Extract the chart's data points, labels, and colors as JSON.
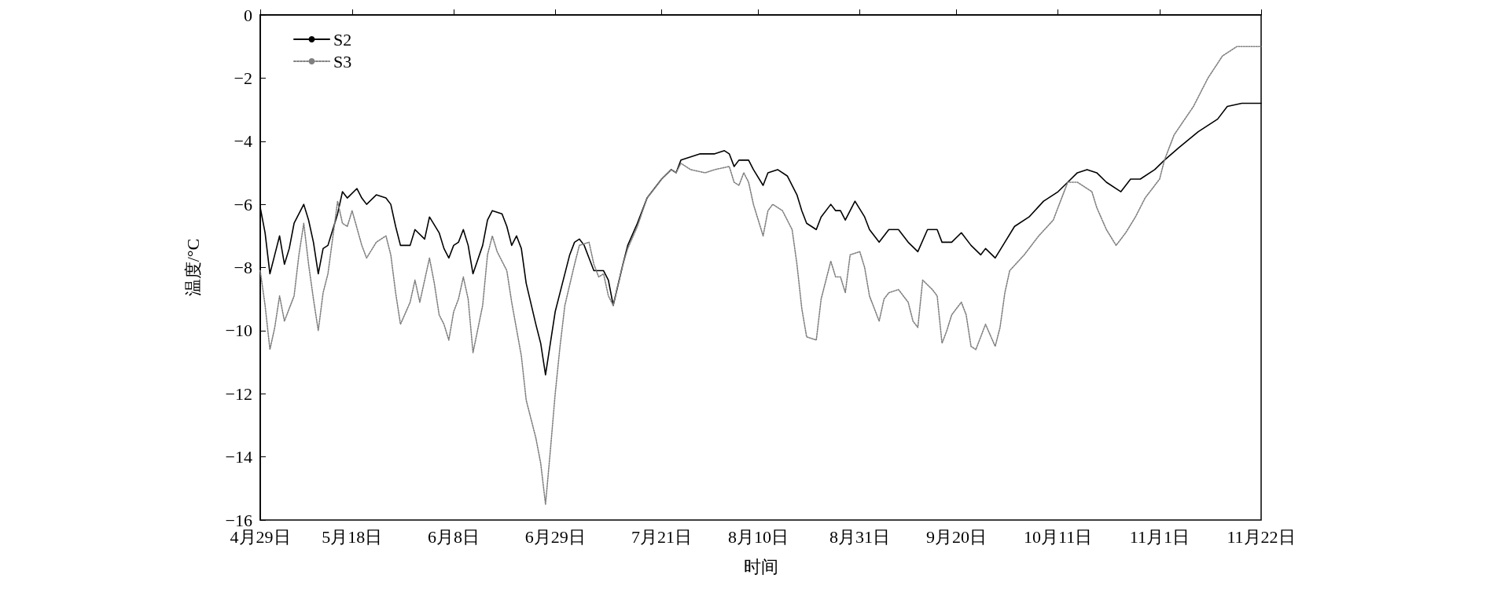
{
  "chart_data": {
    "type": "line",
    "xlabel": "时间",
    "ylabel": "温度/°C",
    "xlim": [
      "--04-29",
      "--11-22"
    ],
    "xticks": [
      {
        "value": "--04-29",
        "label": "4月29日"
      },
      {
        "value": "--05-18",
        "label": "5月18日"
      },
      {
        "value": "--06-08",
        "label": "6月8日"
      },
      {
        "value": "--06-29",
        "label": "6月29日"
      },
      {
        "value": "--07-21",
        "label": "7月21日"
      },
      {
        "value": "--08-10",
        "label": "8月10日"
      },
      {
        "value": "--08-31",
        "label": "8月31日"
      },
      {
        "value": "--09-20",
        "label": "9月20日"
      },
      {
        "value": "--10-11",
        "label": "10月11日"
      },
      {
        "value": "--11-01",
        "label": "11月1日"
      },
      {
        "value": "--11-22",
        "label": "11月22日"
      }
    ],
    "ylim": [
      -16,
      0
    ],
    "yticks": [
      {
        "value": -16,
        "label": "−16"
      },
      {
        "value": -14,
        "label": "−14"
      },
      {
        "value": -12,
        "label": "−12"
      },
      {
        "value": -10,
        "label": "−10"
      },
      {
        "value": -8,
        "label": "−8"
      },
      {
        "value": -6,
        "label": "−6"
      },
      {
        "value": -4,
        "label": "−4"
      },
      {
        "value": -2,
        "label": "−2"
      },
      0
    ],
    "grid": false,
    "legend": "top left",
    "marker": "none",
    "series": [
      {
        "name": "S2",
        "color": "#000000",
        "line_style": "solid",
        "x": [
          "--04-29",
          "--04-30",
          "--05-01",
          "--05-02",
          "--05-03",
          "--05-04",
          "--05-05",
          "--05-06",
          "--05-08",
          "--05-09",
          "--05-10",
          "--05-11",
          "--05-12",
          "--05-13",
          "--05-15",
          "--05-16",
          "--05-17",
          "--05-19",
          "--05-20",
          "--05-21",
          "--05-23",
          "--05-25",
          "--05-26",
          "--05-27",
          "--05-28",
          "--05-30",
          "--05-31",
          "--06-02",
          "--06-03",
          "--06-05",
          "--06-06",
          "--06-07",
          "--06-08",
          "--06-09",
          "--06-10",
          "--06-11",
          "--06-12",
          "--06-14",
          "--06-15",
          "--06-16",
          "--06-18",
          "--06-19",
          "--06-20",
          "--06-21",
          "--06-22",
          "--06-23",
          "--06-25",
          "--06-26",
          "--06-27",
          "--06-28",
          "--06-29",
          "--06-30",
          "--07-02",
          "--07-03",
          "--07-04",
          "--07-05",
          "--07-06",
          "--07-07",
          "--07-09",
          "--07-10",
          "--07-11",
          "--07-13",
          "--07-14",
          "--07-16",
          "--07-18",
          "--07-21",
          "--07-23",
          "--07-24",
          "--07-25",
          "--07-27",
          "--07-29",
          "--08-01",
          "--08-03",
          "--08-04",
          "--08-05",
          "--08-06",
          "--08-08",
          "--08-09",
          "--08-11",
          "--08-12",
          "--08-14",
          "--08-16",
          "--08-18",
          "--08-19",
          "--08-20",
          "--08-22",
          "--08-23",
          "--08-25",
          "--08-26",
          "--08-27",
          "--08-28",
          "--08-30",
          "--09-01",
          "--09-02",
          "--09-04",
          "--09-06",
          "--09-08",
          "--09-10",
          "--09-12",
          "--09-14",
          "--09-16",
          "--09-17",
          "--09-19",
          "--09-21",
          "--09-23",
          "--09-25",
          "--09-26",
          "--09-28",
          "--09-30",
          "--10-02",
          "--10-05",
          "--10-08",
          "--10-11",
          "--10-13",
          "--10-15",
          "--10-17",
          "--10-19",
          "--10-21",
          "--10-24",
          "--10-26",
          "--10-28",
          "--10-31",
          "--11-02",
          "--11-05",
          "--11-09",
          "--11-13",
          "--11-15",
          "--11-18",
          "--11-22"
        ],
        "values": [
          -6.1,
          -6.9,
          -8.2,
          -7.6,
          -7.0,
          -7.9,
          -7.4,
          -6.6,
          -6.0,
          -6.5,
          -7.2,
          -8.2,
          -7.4,
          -7.3,
          -6.3,
          -5.6,
          -5.8,
          -5.5,
          -5.8,
          -6.0,
          -5.7,
          -5.8,
          -6.0,
          -6.7,
          -7.3,
          -7.3,
          -6.8,
          -7.1,
          -6.4,
          -6.9,
          -7.4,
          -7.7,
          -7.3,
          -7.2,
          -6.8,
          -7.3,
          -8.2,
          -7.3,
          -6.5,
          -6.2,
          -6.3,
          -6.7,
          -7.3,
          -7.0,
          -7.4,
          -8.5,
          -9.8,
          -10.4,
          -11.4,
          -10.4,
          -9.4,
          -8.8,
          -7.6,
          -7.2,
          -7.1,
          -7.3,
          -7.7,
          -8.1,
          -8.1,
          -8.4,
          -9.2,
          -7.9,
          -7.3,
          -6.6,
          -5.8,
          -5.2,
          -4.9,
          -5.0,
          -4.6,
          -4.5,
          -4.4,
          -4.4,
          -4.3,
          -4.4,
          -4.8,
          -4.6,
          -4.6,
          -4.9,
          -5.4,
          -5.0,
          -4.9,
          -5.1,
          -5.7,
          -6.2,
          -6.6,
          -6.8,
          -6.4,
          -6.0,
          -6.2,
          -6.2,
          -6.5,
          -5.9,
          -6.4,
          -6.8,
          -7.2,
          -6.8,
          -6.8,
          -7.2,
          -7.5,
          -6.8,
          -6.8,
          -7.2,
          -7.2,
          -6.9,
          -7.3,
          -7.6,
          -7.4,
          -7.7,
          -7.2,
          -6.7,
          -6.4,
          -5.9,
          -5.6,
          -5.3,
          -5.0,
          -4.9,
          -5.0,
          -5.3,
          -5.6,
          -5.2,
          -5.2,
          -4.9,
          -4.6,
          -4.2,
          -3.7,
          -3.3,
          -2.9,
          -2.8,
          -2.8
        ]
      },
      {
        "name": "S3",
        "color": "#808080",
        "line_style": "dotted",
        "x": [
          "--04-29",
          "--04-30",
          "--05-01",
          "--05-02",
          "--05-03",
          "--05-04",
          "--05-06",
          "--05-07",
          "--05-08",
          "--05-09",
          "--05-10",
          "--05-11",
          "--05-12",
          "--05-13",
          "--05-15",
          "--05-16",
          "--05-17",
          "--05-18",
          "--05-20",
          "--05-21",
          "--05-23",
          "--05-25",
          "--05-26",
          "--05-27",
          "--05-28",
          "--05-30",
          "--05-31",
          "--06-01",
          "--06-03",
          "--06-04",
          "--06-05",
          "--06-06",
          "--06-07",
          "--06-08",
          "--06-09",
          "--06-10",
          "--06-11",
          "--06-12",
          "--06-14",
          "--06-15",
          "--06-16",
          "--06-17",
          "--06-19",
          "--06-20",
          "--06-22",
          "--06-23",
          "--06-25",
          "--06-26",
          "--06-27",
          "--06-28",
          "--06-29",
          "--06-30",
          "--07-01",
          "--07-03",
          "--07-04",
          "--07-06",
          "--07-07",
          "--07-08",
          "--07-09",
          "--07-10",
          "--07-11",
          "--07-13",
          "--07-14",
          "--07-16",
          "--07-18",
          "--07-21",
          "--07-23",
          "--07-24",
          "--07-25",
          "--07-27",
          "--07-30",
          "--08-01",
          "--08-04",
          "--08-05",
          "--08-06",
          "--08-07",
          "--08-08",
          "--08-09",
          "--08-11",
          "--08-12",
          "--08-13",
          "--08-15",
          "--08-17",
          "--08-18",
          "--08-19",
          "--08-20",
          "--08-22",
          "--08-23",
          "--08-25",
          "--08-26",
          "--08-27",
          "--08-28",
          "--08-29",
          "--08-31",
          "--09-01",
          "--09-02",
          "--09-04",
          "--09-05",
          "--09-06",
          "--09-08",
          "--09-10",
          "--09-11",
          "--09-12",
          "--09-13",
          "--09-15",
          "--09-16",
          "--09-17",
          "--09-18",
          "--09-19",
          "--09-21",
          "--09-22",
          "--09-23",
          "--09-24",
          "--09-26",
          "--09-28",
          "--09-29",
          "--09-30",
          "--10-01",
          "--10-04",
          "--10-07",
          "--10-10",
          "--10-12",
          "--10-13",
          "--10-15",
          "--10-18",
          "--10-19",
          "--10-21",
          "--10-23",
          "--10-25",
          "--10-27",
          "--10-29",
          "--11-01",
          "--11-02",
          "--11-04",
          "--11-08",
          "--11-11",
          "--11-14",
          "--11-17",
          "--11-20",
          "--11-22"
        ],
        "values": [
          -8.1,
          -9.2,
          -10.6,
          -9.9,
          -8.9,
          -9.7,
          -8.9,
          -7.6,
          -6.6,
          -7.9,
          -9.0,
          -10.0,
          -8.8,
          -8.2,
          -5.9,
          -6.6,
          -6.7,
          -6.2,
          -7.3,
          -7.7,
          -7.2,
          -7.0,
          -7.6,
          -8.8,
          -9.8,
          -9.1,
          -8.4,
          -9.1,
          -7.7,
          -8.5,
          -9.5,
          -9.8,
          -10.3,
          -9.4,
          -9.0,
          -8.3,
          -9.0,
          -10.7,
          -9.2,
          -7.6,
          -7.0,
          -7.5,
          -8.1,
          -9.1,
          -10.8,
          -12.2,
          -13.4,
          -14.2,
          -15.5,
          -13.8,
          -12.0,
          -10.5,
          -9.2,
          -7.9,
          -7.3,
          -7.2,
          -7.9,
          -8.3,
          -8.2,
          -8.9,
          -9.2,
          -7.9,
          -7.4,
          -6.7,
          -5.8,
          -5.2,
          -4.9,
          -5.0,
          -4.7,
          -4.9,
          -5.0,
          -4.9,
          -4.8,
          -5.3,
          -5.4,
          -5.0,
          -5.3,
          -6.0,
          -7.0,
          -6.2,
          -6.0,
          -6.2,
          -6.8,
          -7.9,
          -9.3,
          -10.2,
          -10.3,
          -9.0,
          -7.8,
          -8.3,
          -8.3,
          -8.8,
          -7.6,
          -7.5,
          -8.0,
          -8.9,
          -9.7,
          -9.0,
          -8.8,
          -8.7,
          -9.1,
          -9.7,
          -9.9,
          -8.4,
          -8.7,
          -8.9,
          -10.4,
          -10.0,
          -9.5,
          -9.1,
          -9.5,
          -10.5,
          -10.6,
          -9.8,
          -10.5,
          -9.9,
          -8.8,
          -8.1,
          -7.6,
          -7.0,
          -6.5,
          -5.7,
          -5.3,
          -5.3,
          -5.6,
          -6.1,
          -6.8,
          -7.3,
          -6.9,
          -6.4,
          -5.8,
          -5.2,
          -4.6,
          -3.8,
          -2.9,
          -2.0,
          -1.3,
          -1.0,
          -1.0,
          -1.0
        ]
      }
    ]
  }
}
